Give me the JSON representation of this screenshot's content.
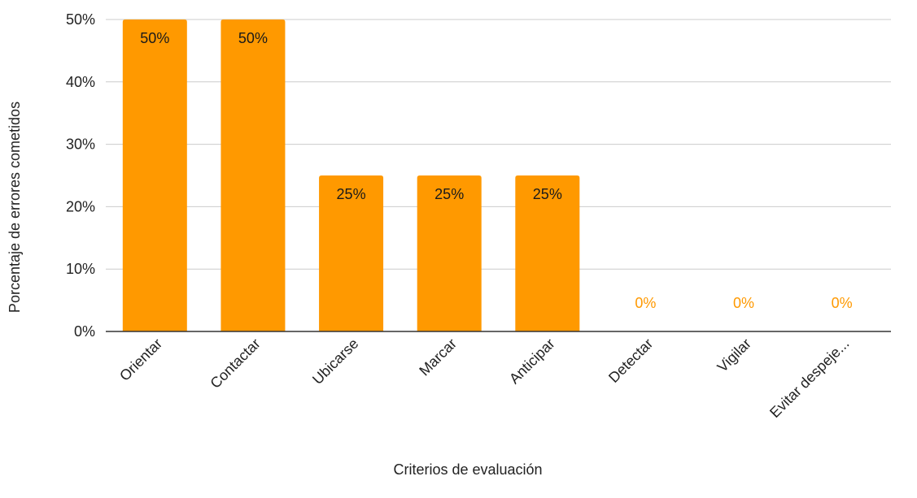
{
  "chart_data": {
    "type": "bar",
    "categories": [
      "Orientar",
      "Contactar",
      "Ubicarse",
      "Marcar",
      "Anticipar",
      "Detectar",
      "Vigilar",
      "Evitar despeje..."
    ],
    "values": [
      50,
      50,
      25,
      25,
      25,
      0,
      0,
      0
    ],
    "value_labels": [
      "50%",
      "50%",
      "25%",
      "25%",
      "25%",
      "0%",
      "0%",
      "0%"
    ],
    "xlabel": "Criterios de evaluación",
    "ylabel": "Porcentaje de errores cometidos",
    "ylim": [
      0,
      50
    ],
    "yticks": [
      0,
      10,
      20,
      30,
      40,
      50
    ],
    "ytick_labels": [
      "0%",
      "10%",
      "20%",
      "30%",
      "40%",
      "50%"
    ],
    "grid": true,
    "legend": "none",
    "colors": {
      "bar": "#ff9900",
      "label_inside": "#1a1a1a",
      "label_zero": "#ff9900",
      "grid": "#cccccc",
      "axis": "#333333"
    }
  }
}
